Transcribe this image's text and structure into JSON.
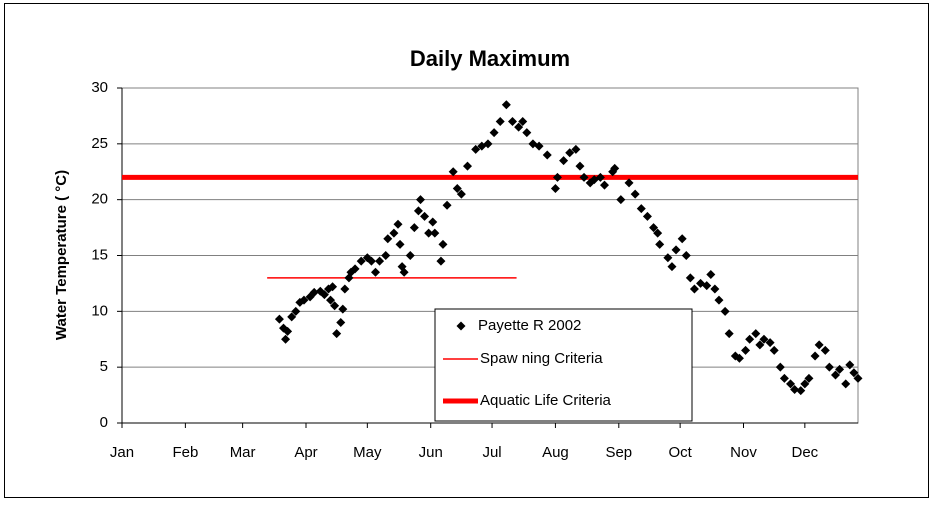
{
  "chart_data": {
    "type": "scatter",
    "title": "Daily Maximum",
    "ylabel": "Water Temperature (  °C)",
    "xlim": [
      1,
      361
    ],
    "xticks": [
      {
        "value": 1,
        "label": "Jan"
      },
      {
        "value": 32,
        "label": "Feb"
      },
      {
        "value": 60,
        "label": "Mar"
      },
      {
        "value": 91,
        "label": "Apr"
      },
      {
        "value": 121,
        "label": "May"
      },
      {
        "value": 152,
        "label": "Jun"
      },
      {
        "value": 182,
        "label": "Jul"
      },
      {
        "value": 213,
        "label": "Aug"
      },
      {
        "value": 244,
        "label": "Sep"
      },
      {
        "value": 274,
        "label": "Oct"
      },
      {
        "value": 305,
        "label": "Nov"
      },
      {
        "value": 335,
        "label": "Dec"
      }
    ],
    "ylim": [
      0,
      30
    ],
    "yticks": [
      0,
      5,
      10,
      15,
      20,
      25,
      30
    ],
    "grid": true,
    "series": [
      {
        "name": "Payette R 2002",
        "color": "#000000",
        "x": [
          78,
          80,
          81,
          82,
          84,
          86,
          88,
          90,
          93,
          95,
          98,
          100,
          102,
          103,
          104,
          105,
          106,
          108,
          109,
          110,
          112,
          113,
          115,
          118,
          121,
          123,
          125,
          127,
          130,
          131,
          134,
          136,
          137,
          138,
          139,
          142,
          144,
          146,
          147,
          149,
          151,
          153,
          154,
          157,
          158,
          160,
          163,
          165,
          167,
          170,
          174,
          177,
          180,
          183,
          186,
          189,
          192,
          195,
          197,
          199,
          202,
          205,
          209,
          213,
          214,
          217,
          220,
          223,
          225,
          227,
          230,
          232,
          235,
          237,
          241,
          242,
          245,
          249,
          252,
          255,
          258,
          261,
          263,
          264,
          268,
          270,
          272,
          275,
          277,
          279,
          281,
          284,
          287,
          289,
          291,
          293,
          296,
          298,
          301,
          303,
          306,
          308,
          311,
          313,
          315,
          318,
          320,
          323,
          325,
          328,
          330,
          333,
          335,
          337,
          340,
          342,
          345,
          347,
          350,
          352,
          355,
          357,
          359,
          361
        ],
        "values": [
          9.3,
          8.5,
          7.5,
          8.2,
          9.5,
          10,
          10.8,
          11,
          11.3,
          11.7,
          11.8,
          11.5,
          12,
          11,
          12.2,
          10.5,
          8,
          9,
          10.2,
          12,
          13,
          13.5,
          13.8,
          14.5,
          14.8,
          14.5,
          13.5,
          14.5,
          15,
          16.5,
          17,
          17.8,
          16,
          14,
          13.5,
          15,
          17.5,
          19,
          20,
          18.5,
          17,
          18,
          17,
          14.5,
          16,
          19.5,
          22.5,
          21,
          20.5,
          23,
          24.5,
          24.8,
          25,
          26,
          27,
          28.5,
          27,
          26.5,
          27,
          26,
          25,
          24.8,
          24,
          21,
          22,
          23.5,
          24.2,
          24.5,
          23,
          22,
          21.5,
          21.8,
          22,
          21.3,
          22.5,
          22.8,
          20,
          21.5,
          20.5,
          19.2,
          18.5,
          17.5,
          17,
          16,
          14.8,
          14,
          15.5,
          16.5,
          15,
          13,
          12,
          12.5,
          12.3,
          13.3,
          12,
          11,
          10,
          8,
          6,
          5.8,
          6.5,
          7.5,
          8,
          7,
          7.5,
          7.2,
          6.5,
          5,
          4,
          3.5,
          3,
          2.9,
          3.5,
          4,
          6,
          7,
          6.5,
          5,
          4.3,
          4.8,
          3.5,
          5.2,
          4.5,
          4
        ]
      }
    ],
    "reference_lines": [
      {
        "name": "Spaw ning Criteria",
        "value": 13,
        "x": [
          72,
          194
        ],
        "color": "#ff0000",
        "line_width": 1.5
      },
      {
        "name": "Aquatic Life Criteria",
        "value": 22,
        "color": "#ff0000",
        "line_width": 5
      }
    ]
  }
}
